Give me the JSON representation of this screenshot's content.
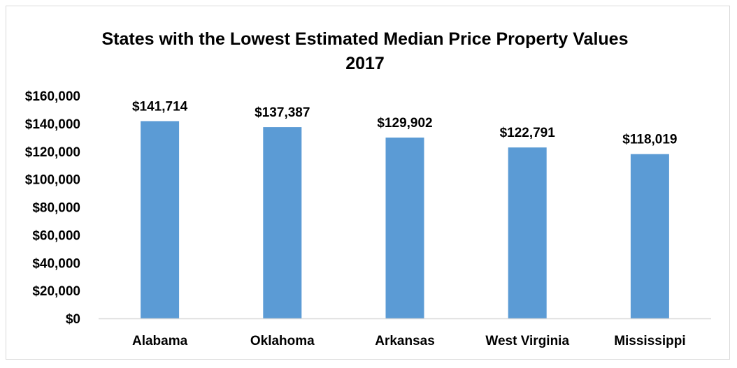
{
  "chart_data": {
    "type": "bar",
    "title": [
      "States with the Lowest Estimated Median Price Property Values",
      "2017"
    ],
    "categories": [
      "Alabama",
      "Oklahoma",
      "Arkansas",
      "West Virginia",
      "Mississippi"
    ],
    "values": [
      141714,
      137387,
      129902,
      122791,
      118019
    ],
    "data_labels": [
      "$141,714",
      "$137,387",
      "$129,902",
      "$122,791",
      "$118,019"
    ],
    "yticks": [
      0,
      20000,
      40000,
      60000,
      80000,
      100000,
      120000,
      140000,
      160000
    ],
    "ytick_labels": [
      "$0",
      "$20,000",
      "$40,000",
      "$60,000",
      "$80,000",
      "$100,000",
      "$120,000",
      "$140,000",
      "$160,000"
    ],
    "ylim": [
      0,
      160000
    ],
    "xlabel": "",
    "ylabel": "",
    "grid": false,
    "legend": "none",
    "bar_color": "#5b9bd5",
    "axis_color": "#d9d9d9"
  }
}
